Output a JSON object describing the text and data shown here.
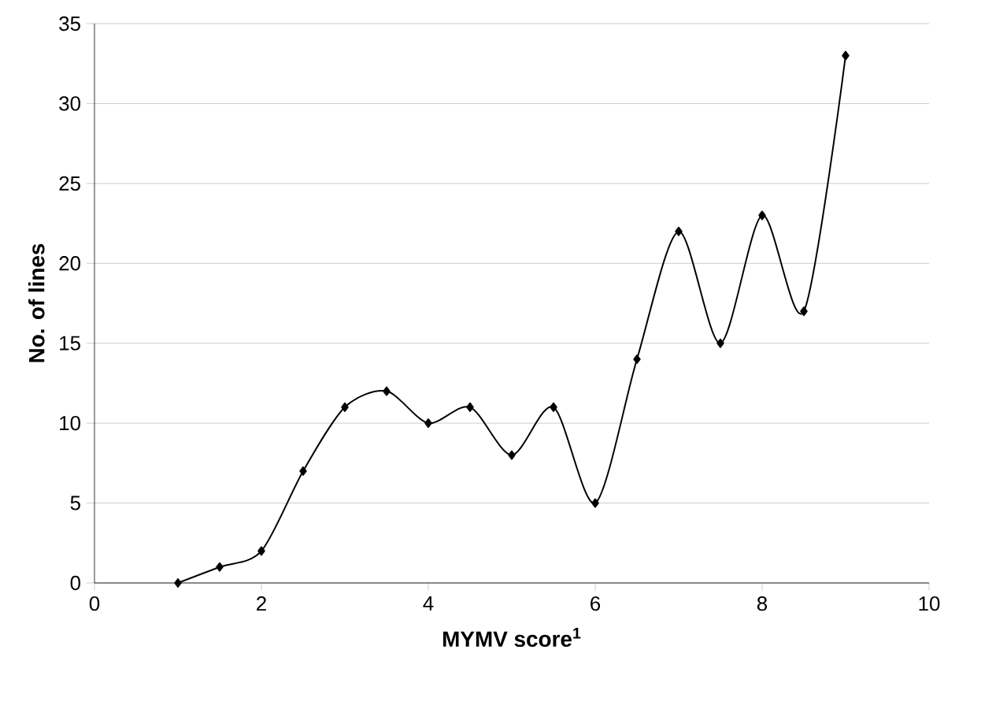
{
  "chart_data": {
    "type": "line",
    "xlabel": "MYMV score$^{1}$",
    "ylabel": "No. of lines",
    "x": [
      1,
      1.5,
      2,
      2.5,
      3,
      3.5,
      4,
      4.5,
      5,
      5.5,
      6,
      6.5,
      7,
      7.5,
      8,
      8.5,
      9
    ],
    "values": [
      0,
      1,
      2,
      7,
      11,
      12,
      10,
      11,
      8,
      11,
      5,
      14,
      22,
      15,
      23,
      17,
      33
    ],
    "color": "#000000",
    "marker": "diamond",
    "line_style": "solid",
    "grid": "y",
    "xlim": [
      0,
      10
    ],
    "ylim": [
      0,
      35
    ],
    "xticks": [
      0,
      2,
      4,
      6,
      8,
      10
    ],
    "yticks": [
      0,
      5,
      10,
      15,
      20,
      25,
      30,
      35
    ]
  }
}
